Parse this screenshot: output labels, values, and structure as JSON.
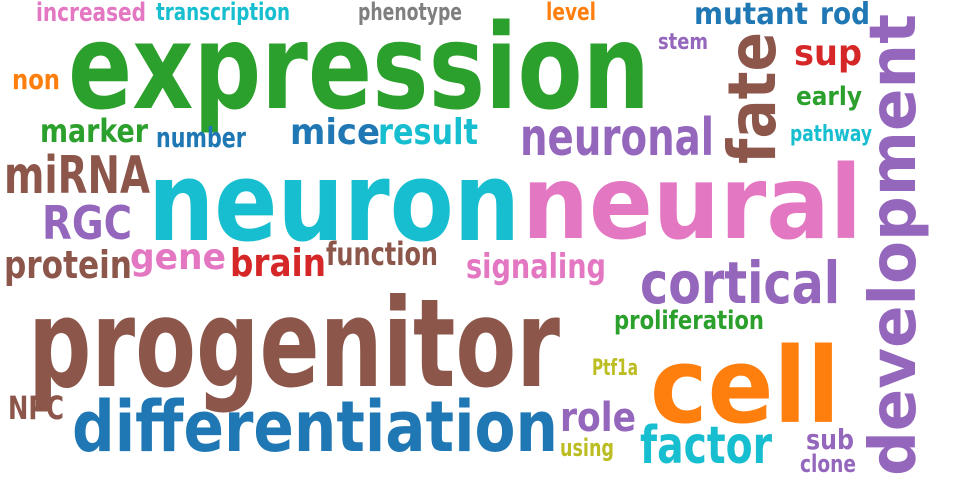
{
  "colors": {
    "green": "#2ca02c",
    "cyan": "#17becf",
    "pink": "#e377c2",
    "brown": "#8c564b",
    "blue": "#1f77b4",
    "purple": "#9467bd",
    "orange": "#ff7f0e",
    "red": "#d62728",
    "gray": "#7f7f7f",
    "olive": "#bcbd22"
  },
  "words": [
    {
      "id": "expression",
      "text": "expression",
      "color": "green"
    },
    {
      "id": "neuron",
      "text": "neuron",
      "color": "cyan"
    },
    {
      "id": "neural",
      "text": "neural",
      "color": "pink"
    },
    {
      "id": "progenitor",
      "text": "progenitor",
      "color": "brown"
    },
    {
      "id": "differentiation",
      "text": "differentiation",
      "color": "blue"
    },
    {
      "id": "cell",
      "text": "cell",
      "color": "orange"
    },
    {
      "id": "development",
      "text": "development",
      "color": "purple"
    },
    {
      "id": "fate",
      "text": "fate",
      "color": "brown"
    },
    {
      "id": "neuronal",
      "text": "neuronal",
      "color": "purple"
    },
    {
      "id": "cortical",
      "text": "cortical",
      "color": "purple"
    },
    {
      "id": "mirna",
      "text": "miRNA",
      "color": "brown"
    },
    {
      "id": "mice",
      "text": "mice",
      "color": "blue"
    },
    {
      "id": "result",
      "text": "result",
      "color": "cyan"
    },
    {
      "id": "factor",
      "text": "factor",
      "color": "cyan"
    },
    {
      "id": "rgc",
      "text": "RGC",
      "color": "purple"
    },
    {
      "id": "gene",
      "text": "gene",
      "color": "pink"
    },
    {
      "id": "brain",
      "text": "brain",
      "color": "red"
    },
    {
      "id": "protein",
      "text": "protein",
      "color": "brown"
    },
    {
      "id": "function",
      "text": "function",
      "color": "brown"
    },
    {
      "id": "signaling",
      "text": "signaling",
      "color": "pink"
    },
    {
      "id": "role",
      "text": "role",
      "color": "purple"
    },
    {
      "id": "sup",
      "text": "sup",
      "color": "red"
    },
    {
      "id": "rod",
      "text": "rod",
      "color": "blue"
    },
    {
      "id": "mutant",
      "text": "mutant",
      "color": "blue"
    },
    {
      "id": "early",
      "text": "early",
      "color": "green"
    },
    {
      "id": "marker",
      "text": "marker",
      "color": "green"
    },
    {
      "id": "number",
      "text": "number",
      "color": "blue"
    },
    {
      "id": "non",
      "text": "non",
      "color": "orange"
    },
    {
      "id": "increased",
      "text": "increased",
      "color": "pink"
    },
    {
      "id": "transcription",
      "text": "transcription",
      "color": "cyan"
    },
    {
      "id": "phenotype",
      "text": "phenotype",
      "color": "gray"
    },
    {
      "id": "level",
      "text": "level",
      "color": "orange"
    },
    {
      "id": "stem",
      "text": "stem",
      "color": "purple"
    },
    {
      "id": "pathway",
      "text": "pathway",
      "color": "cyan"
    },
    {
      "id": "proliferation",
      "text": "proliferation",
      "color": "green"
    },
    {
      "id": "ptf1a",
      "text": "Ptf1a",
      "color": "olive"
    },
    {
      "id": "npc",
      "text": "NPC",
      "color": "brown"
    },
    {
      "id": "using",
      "text": "using",
      "color": "olive"
    },
    {
      "id": "sub",
      "text": "sub",
      "color": "purple"
    },
    {
      "id": "clone",
      "text": "clone",
      "color": "purple"
    }
  ]
}
